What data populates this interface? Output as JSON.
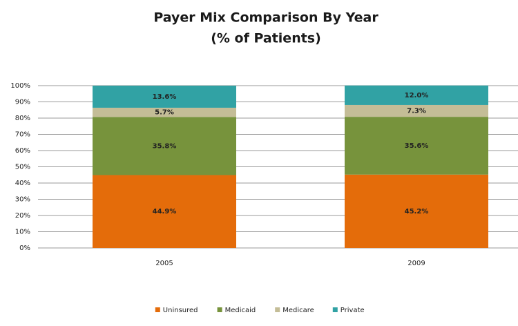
{
  "chart_data": {
    "type": "stacked_bar",
    "title": "Payer Mix Comparison By Year",
    "subtitle": "(% of Patients)",
    "categories": [
      "2005",
      "2009"
    ],
    "series": [
      {
        "name": "Uninsured",
        "color": "#e46c0a",
        "values": [
          44.9,
          45.2
        ],
        "value_labels": [
          "44.9%",
          "45.2%"
        ]
      },
      {
        "name": "Medicaid",
        "color": "#77933c",
        "values": [
          35.8,
          35.6
        ],
        "value_labels": [
          "35.8%",
          "35.6%"
        ]
      },
      {
        "name": "Medicare",
        "color": "#c4bd97",
        "values": [
          5.7,
          7.3
        ],
        "value_labels": [
          "5.7%",
          "7.3%"
        ]
      },
      {
        "name": "Private",
        "color": "#31a2a4",
        "values": [
          13.6,
          12.0
        ],
        "value_labels": [
          "13.6%",
          "12.0%"
        ]
      }
    ],
    "ylim": [
      0,
      100
    ],
    "yticks": [
      {
        "value": 0,
        "label": "0%"
      },
      {
        "value": 10,
        "label": "10%"
      },
      {
        "value": 20,
        "label": "20%"
      },
      {
        "value": 30,
        "label": "30%"
      },
      {
        "value": 40,
        "label": "40%"
      },
      {
        "value": 50,
        "label": "50%"
      },
      {
        "value": 60,
        "label": "60%"
      },
      {
        "value": 70,
        "label": "70%"
      },
      {
        "value": 80,
        "label": "80%"
      },
      {
        "value": 90,
        "label": "90%"
      },
      {
        "value": 100,
        "label": "100%"
      }
    ],
    "grid": true,
    "legend": "bottom"
  }
}
